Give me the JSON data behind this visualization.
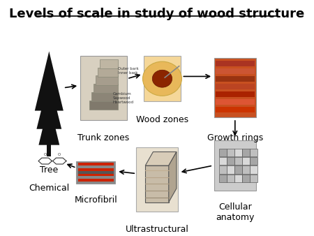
{
  "title": "Levels of scale in study of wood structure",
  "title_fontsize": 13,
  "title_fontweight": "bold",
  "background_color": "#ffffff",
  "labels": {
    "tree": "Tree",
    "trunk": "Trunk zones",
    "wood": "Wood zones",
    "growth": "Growth rings",
    "cellular": "Cellular\nanatomy",
    "ultrastructural": "Ultrastructural",
    "microfibril": "Microfibril",
    "chemical": "Chemical"
  },
  "label_fontsize": 9
}
